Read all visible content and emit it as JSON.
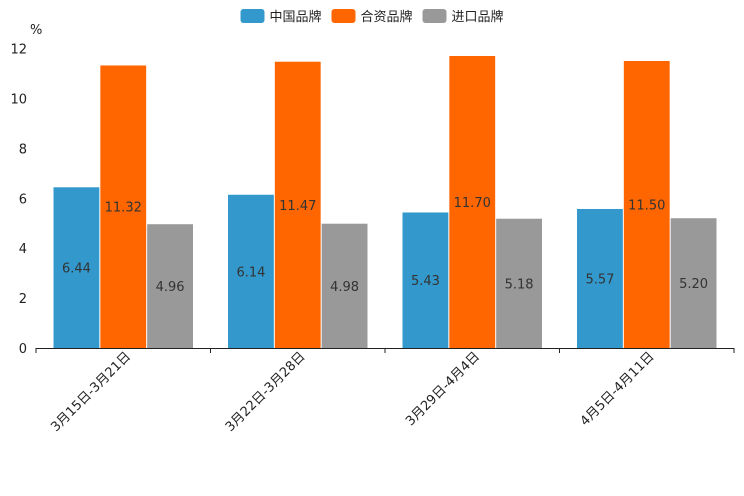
{
  "chart_data": {
    "type": "bar",
    "title": "",
    "xlabel": "",
    "ylabel": "%",
    "ylim": [
      0,
      12
    ],
    "yticks": [
      0,
      2,
      4,
      6,
      8,
      10,
      12
    ],
    "grid": false,
    "legend_position": "top-center",
    "categories": [
      "3月15日-3月21日",
      "3月22日-3月28日",
      "3月29日-4月4日",
      "4月5日-4月11日"
    ],
    "series": [
      {
        "name": "中国品牌",
        "color": "#3399cc",
        "values": [
          6.44,
          6.14,
          5.43,
          5.57
        ],
        "labels": [
          "6.44",
          "6.14",
          "5.43",
          "5.57"
        ]
      },
      {
        "name": "合资品牌",
        "color": "#ff6600",
        "values": [
          11.32,
          11.47,
          11.7,
          11.5
        ],
        "labels": [
          "11.32",
          "11.47",
          "11.70",
          "11.50"
        ]
      },
      {
        "name": "进口品牌",
        "color": "#999999",
        "values": [
          4.96,
          4.98,
          5.18,
          5.2
        ],
        "labels": [
          "4.96",
          "4.98",
          "5.18",
          "5.20"
        ]
      }
    ]
  }
}
